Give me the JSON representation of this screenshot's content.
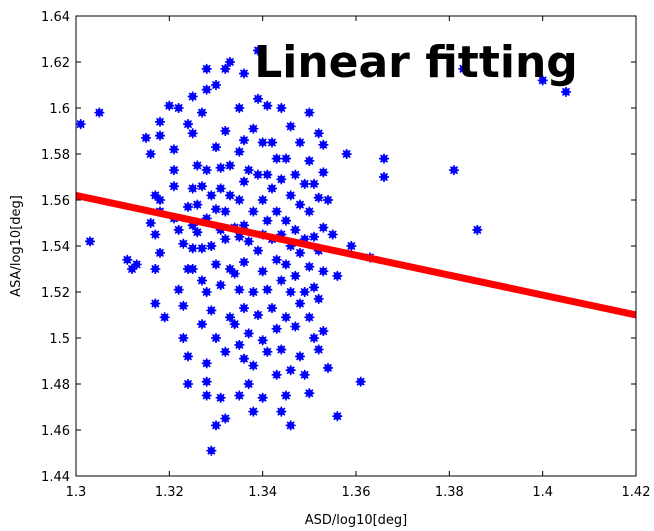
{
  "chart_data": {
    "type": "scatter",
    "title": "Linear fitting",
    "xlabel": "ASD/log10[deg]",
    "ylabel": "ASA/log10[deg]",
    "xlim": [
      1.3,
      1.42
    ],
    "ylim": [
      1.44,
      1.64
    ],
    "xticks": [
      "1.3",
      "1.32",
      "1.34",
      "1.36",
      "1.38",
      "1.4",
      "1.42"
    ],
    "yticks": [
      "1.44",
      "1.46",
      "1.48",
      "1.5",
      "1.52",
      "1.54",
      "1.56",
      "1.58",
      "1.6",
      "1.62",
      "1.64"
    ],
    "grid": false,
    "colors": {
      "points": "#0000ff",
      "fit_line": "#ff0000"
    },
    "fit_line": {
      "x": [
        1.3,
        1.42
      ],
      "y": [
        1.562,
        1.51
      ]
    },
    "points": [
      [
        1.301,
        1.593
      ],
      [
        1.303,
        1.542
      ],
      [
        1.305,
        1.598
      ],
      [
        1.311,
        1.534
      ],
      [
        1.312,
        1.53
      ],
      [
        1.313,
        1.532
      ],
      [
        1.315,
        1.587
      ],
      [
        1.316,
        1.55
      ],
      [
        1.316,
        1.58
      ],
      [
        1.317,
        1.562
      ],
      [
        1.317,
        1.515
      ],
      [
        1.317,
        1.53
      ],
      [
        1.317,
        1.545
      ],
      [
        1.318,
        1.594
      ],
      [
        1.318,
        1.588
      ],
      [
        1.318,
        1.56
      ],
      [
        1.318,
        1.555
      ],
      [
        1.318,
        1.537
      ],
      [
        1.319,
        1.509
      ],
      [
        1.32,
        1.601
      ],
      [
        1.321,
        1.582
      ],
      [
        1.321,
        1.573
      ],
      [
        1.321,
        1.566
      ],
      [
        1.321,
        1.552
      ],
      [
        1.322,
        1.547
      ],
      [
        1.322,
        1.521
      ],
      [
        1.322,
        1.6
      ],
      [
        1.323,
        1.541
      ],
      [
        1.323,
        1.514
      ],
      [
        1.323,
        1.5
      ],
      [
        1.324,
        1.593
      ],
      [
        1.324,
        1.557
      ],
      [
        1.324,
        1.53
      ],
      [
        1.324,
        1.492
      ],
      [
        1.324,
        1.48
      ],
      [
        1.325,
        1.605
      ],
      [
        1.325,
        1.589
      ],
      [
        1.325,
        1.565
      ],
      [
        1.325,
        1.549
      ],
      [
        1.325,
        1.539
      ],
      [
        1.325,
        1.53
      ],
      [
        1.326,
        1.575
      ],
      [
        1.326,
        1.558
      ],
      [
        1.326,
        1.546
      ],
      [
        1.327,
        1.598
      ],
      [
        1.327,
        1.566
      ],
      [
        1.327,
        1.539
      ],
      [
        1.327,
        1.525
      ],
      [
        1.327,
        1.506
      ],
      [
        1.328,
        1.617
      ],
      [
        1.328,
        1.608
      ],
      [
        1.328,
        1.573
      ],
      [
        1.328,
        1.552
      ],
      [
        1.328,
        1.52
      ],
      [
        1.328,
        1.489
      ],
      [
        1.328,
        1.481
      ],
      [
        1.328,
        1.475
      ],
      [
        1.329,
        1.451
      ],
      [
        1.329,
        1.562
      ],
      [
        1.329,
        1.54
      ],
      [
        1.329,
        1.512
      ],
      [
        1.33,
        1.61
      ],
      [
        1.33,
        1.583
      ],
      [
        1.33,
        1.556
      ],
      [
        1.33,
        1.532
      ],
      [
        1.33,
        1.5
      ],
      [
        1.33,
        1.462
      ],
      [
        1.331,
        1.574
      ],
      [
        1.331,
        1.565
      ],
      [
        1.331,
        1.547
      ],
      [
        1.331,
        1.523
      ],
      [
        1.331,
        1.474
      ],
      [
        1.332,
        1.617
      ],
      [
        1.332,
        1.59
      ],
      [
        1.332,
        1.555
      ],
      [
        1.332,
        1.543
      ],
      [
        1.332,
        1.494
      ],
      [
        1.332,
        1.465
      ],
      [
        1.333,
        1.62
      ],
      [
        1.333,
        1.575
      ],
      [
        1.333,
        1.562
      ],
      [
        1.333,
        1.53
      ],
      [
        1.333,
        1.509
      ],
      [
        1.334,
        1.548
      ],
      [
        1.334,
        1.528
      ],
      [
        1.334,
        1.506
      ],
      [
        1.335,
        1.6
      ],
      [
        1.335,
        1.581
      ],
      [
        1.335,
        1.56
      ],
      [
        1.335,
        1.544
      ],
      [
        1.335,
        1.521
      ],
      [
        1.335,
        1.497
      ],
      [
        1.335,
        1.475
      ],
      [
        1.336,
        1.615
      ],
      [
        1.336,
        1.586
      ],
      [
        1.336,
        1.568
      ],
      [
        1.336,
        1.549
      ],
      [
        1.336,
        1.533
      ],
      [
        1.336,
        1.513
      ],
      [
        1.336,
        1.491
      ],
      [
        1.337,
        1.573
      ],
      [
        1.337,
        1.542
      ],
      [
        1.337,
        1.502
      ],
      [
        1.337,
        1.48
      ],
      [
        1.338,
        1.591
      ],
      [
        1.338,
        1.555
      ],
      [
        1.338,
        1.52
      ],
      [
        1.338,
        1.488
      ],
      [
        1.338,
        1.468
      ],
      [
        1.339,
        1.625
      ],
      [
        1.339,
        1.604
      ],
      [
        1.339,
        1.571
      ],
      [
        1.339,
        1.538
      ],
      [
        1.339,
        1.51
      ],
      [
        1.34,
        1.585
      ],
      [
        1.34,
        1.56
      ],
      [
        1.34,
        1.545
      ],
      [
        1.34,
        1.529
      ],
      [
        1.34,
        1.499
      ],
      [
        1.34,
        1.474
      ],
      [
        1.341,
        1.601
      ],
      [
        1.341,
        1.571
      ],
      [
        1.341,
        1.551
      ],
      [
        1.341,
        1.521
      ],
      [
        1.341,
        1.494
      ],
      [
        1.342,
        1.585
      ],
      [
        1.342,
        1.565
      ],
      [
        1.342,
        1.543
      ],
      [
        1.342,
        1.513
      ],
      [
        1.343,
        1.578
      ],
      [
        1.343,
        1.555
      ],
      [
        1.343,
        1.534
      ],
      [
        1.343,
        1.504
      ],
      [
        1.343,
        1.484
      ],
      [
        1.344,
        1.6
      ],
      [
        1.344,
        1.569
      ],
      [
        1.344,
        1.545
      ],
      [
        1.344,
        1.525
      ],
      [
        1.344,
        1.495
      ],
      [
        1.344,
        1.468
      ],
      [
        1.345,
        1.578
      ],
      [
        1.345,
        1.551
      ],
      [
        1.345,
        1.532
      ],
      [
        1.345,
        1.509
      ],
      [
        1.345,
        1.475
      ],
      [
        1.346,
        1.592
      ],
      [
        1.346,
        1.562
      ],
      [
        1.346,
        1.54
      ],
      [
        1.346,
        1.52
      ],
      [
        1.346,
        1.486
      ],
      [
        1.346,
        1.462
      ],
      [
        1.347,
        1.571
      ],
      [
        1.347,
        1.547
      ],
      [
        1.347,
        1.527
      ],
      [
        1.347,
        1.505
      ],
      [
        1.348,
        1.585
      ],
      [
        1.348,
        1.558
      ],
      [
        1.348,
        1.537
      ],
      [
        1.348,
        1.515
      ],
      [
        1.348,
        1.492
      ],
      [
        1.349,
        1.567
      ],
      [
        1.349,
        1.543
      ],
      [
        1.349,
        1.52
      ],
      [
        1.349,
        1.484
      ],
      [
        1.35,
        1.598
      ],
      [
        1.35,
        1.577
      ],
      [
        1.35,
        1.555
      ],
      [
        1.35,
        1.531
      ],
      [
        1.35,
        1.509
      ],
      [
        1.35,
        1.476
      ],
      [
        1.351,
        1.567
      ],
      [
        1.351,
        1.544
      ],
      [
        1.351,
        1.522
      ],
      [
        1.351,
        1.5
      ],
      [
        1.352,
        1.589
      ],
      [
        1.352,
        1.561
      ],
      [
        1.352,
        1.538
      ],
      [
        1.352,
        1.517
      ],
      [
        1.352,
        1.495
      ],
      [
        1.353,
        1.584
      ],
      [
        1.353,
        1.572
      ],
      [
        1.353,
        1.548
      ],
      [
        1.353,
        1.529
      ],
      [
        1.353,
        1.503
      ],
      [
        1.354,
        1.56
      ],
      [
        1.354,
        1.487
      ],
      [
        1.355,
        1.545
      ],
      [
        1.356,
        1.527
      ],
      [
        1.356,
        1.466
      ],
      [
        1.358,
        1.58
      ],
      [
        1.359,
        1.54
      ],
      [
        1.361,
        1.481
      ],
      [
        1.363,
        1.535
      ],
      [
        1.366,
        1.578
      ],
      [
        1.366,
        1.57
      ],
      [
        1.381,
        1.573
      ],
      [
        1.383,
        1.617
      ],
      [
        1.386,
        1.547
      ],
      [
        1.4,
        1.612
      ],
      [
        1.405,
        1.607
      ]
    ]
  }
}
